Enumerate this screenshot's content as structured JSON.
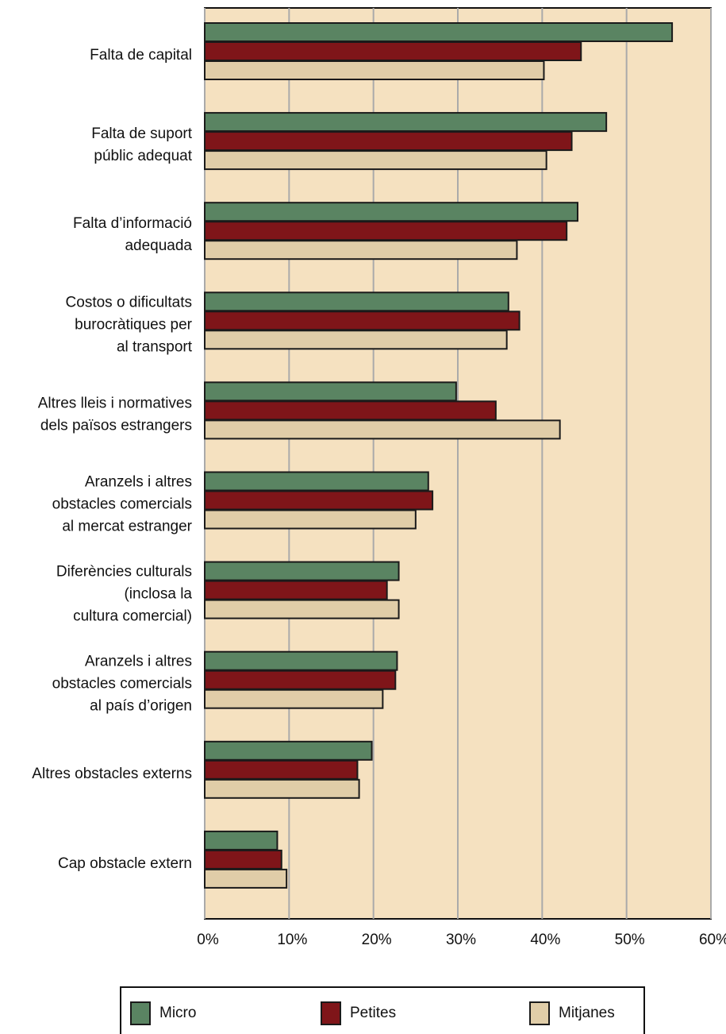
{
  "chart_data": {
    "type": "bar",
    "orientation": "horizontal",
    "categories": [
      "Falta de capital",
      "Falta de suport\npúblic adequat",
      "Falta d’informació\nadequada",
      "Costos o dificultats\nburocràtiques per\nal transport",
      "Altres lleis i normatives\ndels països estrangers",
      "Aranzels i altres\nobstacles comercials\nal mercat estranger",
      "Diferències culturals\n(inclosa la\ncultura comercial)",
      "Aranzels i altres\nobstacles comercials\nal país d’origen",
      "Altres obstacles externs",
      "Cap obstacle extern"
    ],
    "series": [
      {
        "name": "Micro",
        "color": "#5a8462",
        "values": [
          55.4,
          47.6,
          44.2,
          36.0,
          29.8,
          26.5,
          23.0,
          22.8,
          19.8,
          8.6
        ]
      },
      {
        "name": "Petites",
        "color": "#7f1519",
        "values": [
          44.6,
          43.5,
          42.9,
          37.3,
          34.5,
          27.0,
          21.6,
          22.6,
          18.1,
          9.1
        ]
      },
      {
        "name": "Mitjanes",
        "color": "#e0cda8",
        "values": [
          40.2,
          40.5,
          37.0,
          35.8,
          42.1,
          25.0,
          23.0,
          21.1,
          18.3,
          9.7
        ]
      }
    ],
    "xlim": [
      0,
      60
    ],
    "xticks": [
      {
        "value": 0,
        "label": "0%"
      },
      {
        "value": 10,
        "label": "10%"
      },
      {
        "value": 20,
        "label": "20%"
      },
      {
        "value": 30,
        "label": "30%"
      },
      {
        "value": 40,
        "label": "40%"
      },
      {
        "value": 50,
        "label": "50%"
      },
      {
        "value": 60,
        "label": "60%"
      }
    ],
    "grid": true,
    "legend": "bottom"
  }
}
